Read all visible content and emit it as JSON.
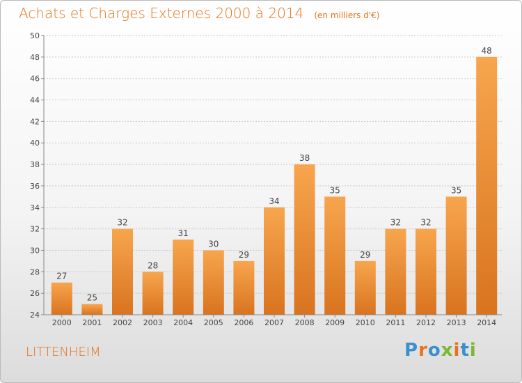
{
  "header": {
    "title": "Achats et Charges Externes 2000 à 2014",
    "subtitle": "(en milliers d'€)"
  },
  "footer": {
    "commune": "LITTENHEIM",
    "logo_text": "Proxiti"
  },
  "colors": {
    "title": "#e8731a",
    "bar_light": "#f7a64e",
    "bar_dark": "#d9731f",
    "logo": [
      "#3a8fd0",
      "#e8731a",
      "#3a8fd0",
      "#7cb82f",
      "#e8731a",
      "#3a8fd0",
      "#7cb82f"
    ]
  },
  "chart_data": {
    "type": "bar",
    "categories": [
      "2000",
      "2001",
      "2002",
      "2003",
      "2004",
      "2005",
      "2006",
      "2007",
      "2008",
      "2009",
      "2010",
      "2011",
      "2012",
      "2013",
      "2014"
    ],
    "values": [
      27,
      25,
      32,
      28,
      31,
      30,
      29,
      34,
      38,
      35,
      29,
      32,
      32,
      35,
      48
    ],
    "ylim": [
      24,
      50
    ],
    "yticks": [
      24,
      26,
      28,
      30,
      32,
      34,
      36,
      38,
      40,
      42,
      44,
      46,
      48,
      50
    ],
    "grid": true
  }
}
